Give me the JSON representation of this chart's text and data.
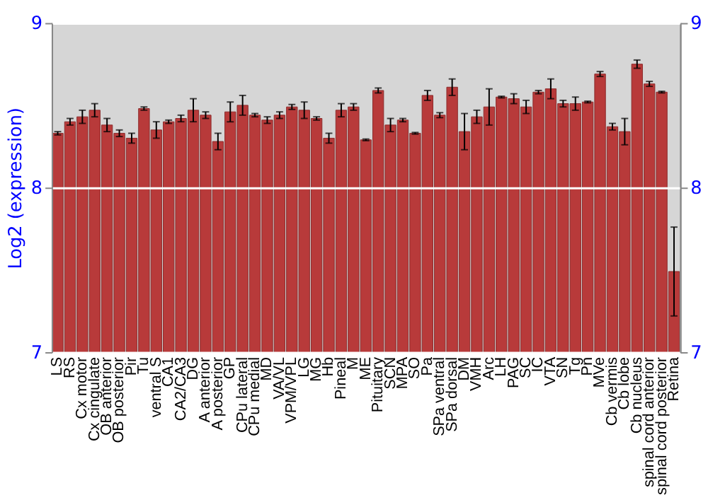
{
  "chart_data": {
    "type": "bar",
    "ylabel": "Log2 (expression)",
    "categories": [
      "LS",
      "RS",
      "Cx motor",
      "Cx cingulate",
      "OB anterior",
      "OB posterior",
      "Pir",
      "Tu",
      "ventral S",
      "CA1",
      "CA2/CA3",
      "DG",
      "A anterior",
      "A posterior",
      "GP",
      "CPu lateral",
      "CPu medial",
      "MD",
      "VA/VL",
      "VPM/VPL",
      "LG",
      "MG",
      "Hb",
      "Pineal",
      "M",
      "ME",
      "Pituitary",
      "SCN",
      "MPA",
      "SO",
      "Pa",
      "SPa ventral",
      "SPa dorsal",
      "DM",
      "VMH",
      "Arc",
      "LH",
      "PAG",
      "SC",
      "IC",
      "VTA",
      "SN",
      "Tg",
      "Pn",
      "MVe",
      "Cb vermis",
      "Cb lobe",
      "Cb nucleus",
      "spinal cord anterior",
      "spinal cord posterior",
      "Retina"
    ],
    "values": [
      8.33,
      8.4,
      8.43,
      8.47,
      8.38,
      8.33,
      8.3,
      8.48,
      8.35,
      8.4,
      8.42,
      8.47,
      8.44,
      8.28,
      8.46,
      8.5,
      8.44,
      8.41,
      8.44,
      8.49,
      8.47,
      8.42,
      8.3,
      8.47,
      8.49,
      8.29,
      8.59,
      8.38,
      8.41,
      8.33,
      8.56,
      8.44,
      8.61,
      8.34,
      8.43,
      8.49,
      8.55,
      8.54,
      8.49,
      8.58,
      8.6,
      8.51,
      8.51,
      8.52,
      8.69,
      8.37,
      8.34,
      8.75,
      8.63,
      8.58,
      7.49
    ],
    "errors": [
      0.01,
      0.02,
      0.04,
      0.04,
      0.04,
      0.02,
      0.03,
      0.01,
      0.05,
      0.01,
      0.02,
      0.07,
      0.02,
      0.05,
      0.06,
      0.06,
      0.01,
      0.02,
      0.02,
      0.015,
      0.05,
      0.01,
      0.03,
      0.04,
      0.02,
      0.005,
      0.015,
      0.04,
      0.01,
      0.005,
      0.03,
      0.015,
      0.05,
      0.11,
      0.04,
      0.11,
      0.005,
      0.03,
      0.04,
      0.01,
      0.06,
      0.02,
      0.04,
      0.005,
      0.015,
      0.02,
      0.08,
      0.025,
      0.015,
      0.005,
      0.27
    ],
    "color": "#b83a3a",
    "ylim": [
      7,
      9
    ],
    "yticks": [
      7,
      8,
      9
    ],
    "y2lim": [
      7,
      9
    ],
    "y2ticks": [
      7,
      8,
      9
    ],
    "grid": "y"
  }
}
